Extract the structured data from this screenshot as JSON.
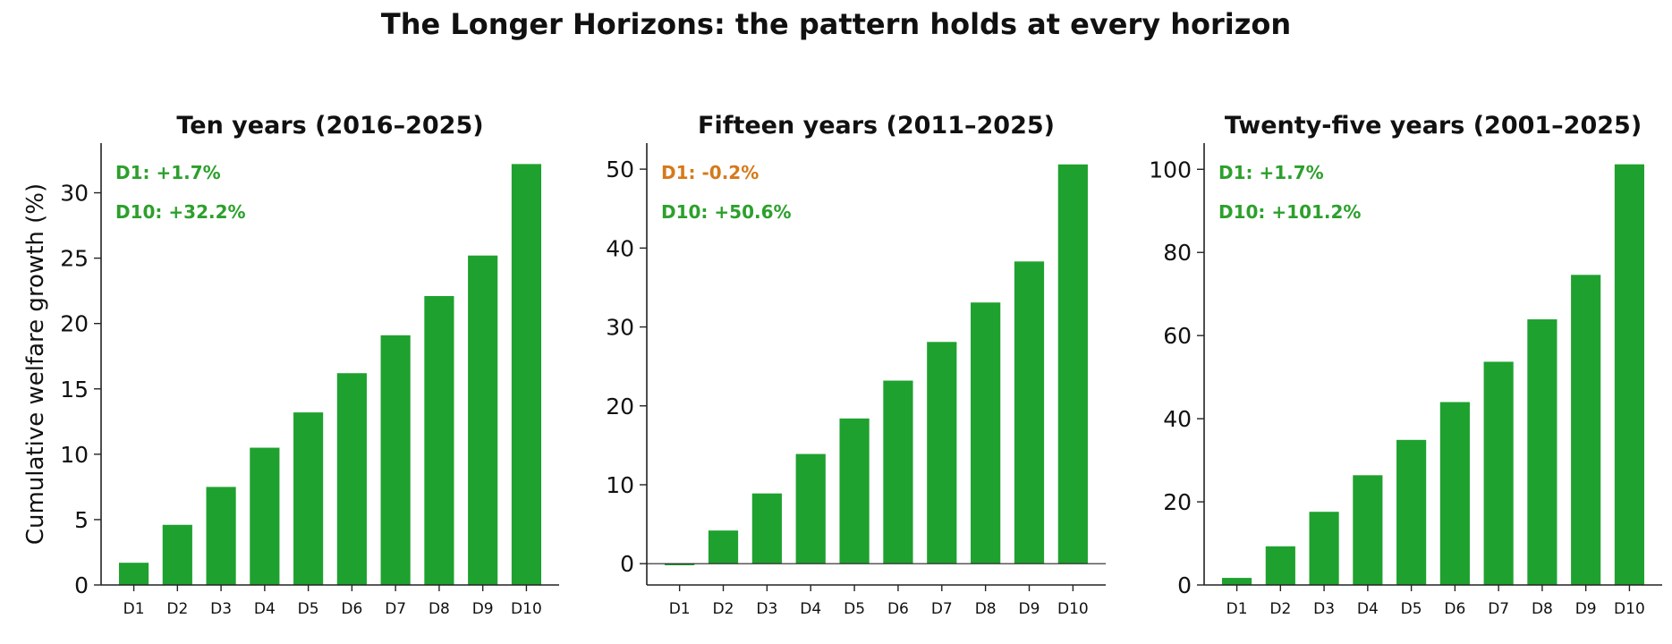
{
  "suptitle": "The Longer Horizons: the pattern holds at every horizon",
  "colors": {
    "bar": "#1fa12f",
    "positive": "#2ca02c",
    "negative": "#d6791a",
    "axis": "#222222"
  },
  "chart_data": [
    {
      "type": "bar",
      "title": "Ten years (2016–2025)",
      "ylabel": "Cumulative welfare growth (%)",
      "categories": [
        "D1",
        "D2",
        "D3",
        "D4",
        "D5",
        "D6",
        "D7",
        "D8",
        "D9",
        "D10"
      ],
      "values": [
        1.7,
        4.6,
        7.5,
        10.5,
        13.2,
        16.2,
        19.1,
        22.1,
        25.2,
        32.2
      ],
      "ylim": [
        0,
        33.8
      ],
      "yticks": [
        0,
        5,
        10,
        15,
        20,
        25,
        30
      ],
      "annotations": [
        {
          "text": "D1: +1.7%",
          "tone": "positive"
        },
        {
          "text": "D10: +32.2%",
          "tone": "positive"
        }
      ]
    },
    {
      "type": "bar",
      "title": "Fifteen years (2011–2025)",
      "ylabel": "",
      "categories": [
        "D1",
        "D2",
        "D3",
        "D4",
        "D5",
        "D6",
        "D7",
        "D8",
        "D9",
        "D10"
      ],
      "values": [
        -0.2,
        4.2,
        8.9,
        13.9,
        18.4,
        23.2,
        28.1,
        33.1,
        38.3,
        50.6
      ],
      "ylim": [
        -2.7,
        53.3
      ],
      "yticks": [
        0,
        10,
        20,
        30,
        40,
        50
      ],
      "zero_line": true,
      "annotations": [
        {
          "text": "D1: -0.2%",
          "tone": "negative"
        },
        {
          "text": "D10: +50.6%",
          "tone": "positive"
        }
      ]
    },
    {
      "type": "bar",
      "title": "Twenty-five years (2001–2025)",
      "ylabel": "",
      "categories": [
        "D1",
        "D2",
        "D3",
        "D4",
        "D5",
        "D6",
        "D7",
        "D8",
        "D9",
        "D10"
      ],
      "values": [
        1.7,
        9.3,
        17.6,
        26.4,
        34.9,
        44.0,
        53.7,
        63.9,
        74.6,
        101.2
      ],
      "ylim": [
        0,
        106.3
      ],
      "yticks": [
        0,
        20,
        40,
        60,
        80,
        100
      ],
      "annotations": [
        {
          "text": "D1: +1.7%",
          "tone": "positive"
        },
        {
          "text": "D10: +101.2%",
          "tone": "positive"
        }
      ]
    }
  ]
}
